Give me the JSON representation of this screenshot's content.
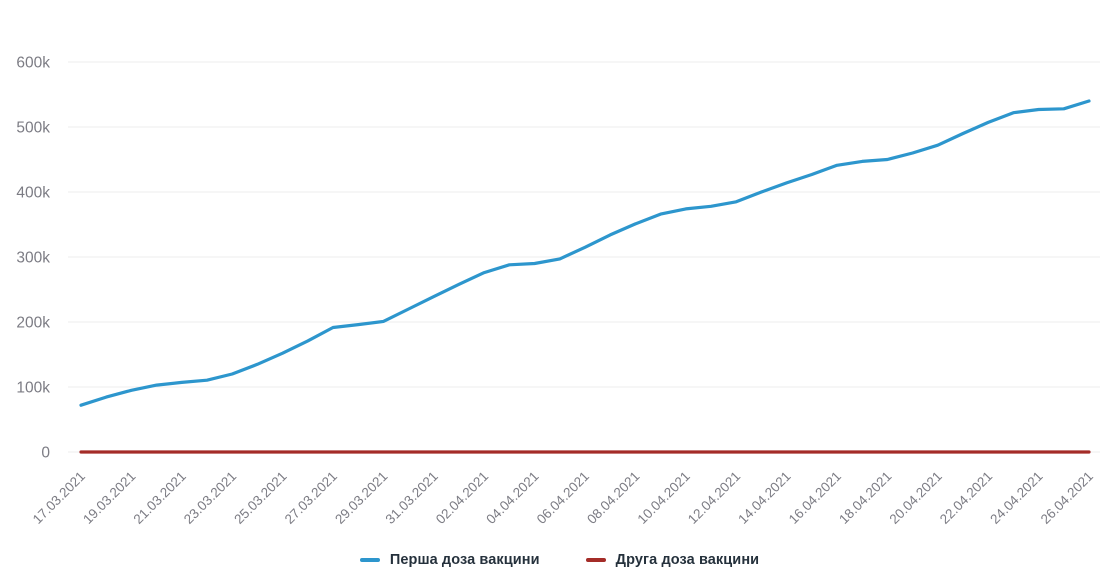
{
  "chart_data": {
    "type": "line",
    "title": "",
    "xlabel": "",
    "ylabel": "",
    "ylim": [
      0,
      600000
    ],
    "grid": "horizontal",
    "legend_position": "bottom",
    "y_ticks": [
      "0",
      "100k",
      "200k",
      "300k",
      "400k",
      "500k",
      "600k"
    ],
    "x_tick_every": 2,
    "x": [
      "17.03.2021",
      "18.03.2021",
      "19.03.2021",
      "20.03.2021",
      "21.03.2021",
      "22.03.2021",
      "23.03.2021",
      "24.03.2021",
      "25.03.2021",
      "26.03.2021",
      "27.03.2021",
      "28.03.2021",
      "29.03.2021",
      "30.03.2021",
      "31.03.2021",
      "01.04.2021",
      "02.04.2021",
      "03.04.2021",
      "04.04.2021",
      "05.04.2021",
      "06.04.2021",
      "07.04.2021",
      "08.04.2021",
      "09.04.2021",
      "10.04.2021",
      "11.04.2021",
      "12.04.2021",
      "13.04.2021",
      "14.04.2021",
      "15.04.2021",
      "16.04.2021",
      "17.04.2021",
      "18.04.2021",
      "19.04.2021",
      "20.04.2021",
      "21.04.2021",
      "22.04.2021",
      "23.04.2021",
      "24.04.2021",
      "25.04.2021",
      "26.04.2021"
    ],
    "series": [
      {
        "key": "first-dose",
        "name": "Перша доза вакцини",
        "color": "#2d96cd",
        "values": [
          72000,
          84500,
          95000,
          103000,
          107000,
          110500,
          120000,
          135000,
          152000,
          171000,
          191500,
          196000,
          201000,
          220000,
          239000,
          258000,
          276000,
          288000,
          290000,
          297000,
          315000,
          334000,
          351000,
          366000,
          374000,
          378000,
          385000,
          400000,
          414000,
          427000,
          441000,
          447000,
          450000,
          460000,
          472000,
          490000,
          507000,
          522000,
          527000,
          528000,
          540000
        ]
      },
      {
        "key": "second-dose",
        "name": "Друга доза вакцини",
        "color": "#a42c28",
        "values": [
          0,
          0,
          0,
          0,
          0,
          0,
          0,
          0,
          0,
          0,
          0,
          0,
          0,
          0,
          0,
          0,
          0,
          0,
          0,
          0,
          0,
          0,
          0,
          0,
          0,
          0,
          0,
          0,
          0,
          0,
          0,
          0,
          0,
          0,
          0,
          0,
          0,
          0,
          0,
          0,
          0
        ]
      }
    ],
    "colors": {
      "grid": "#ededed",
      "tick_text": "#7c7c84"
    }
  },
  "legend": {
    "first_label": "Перша доза вакцини",
    "second_label": "Друга доза вакцини"
  }
}
